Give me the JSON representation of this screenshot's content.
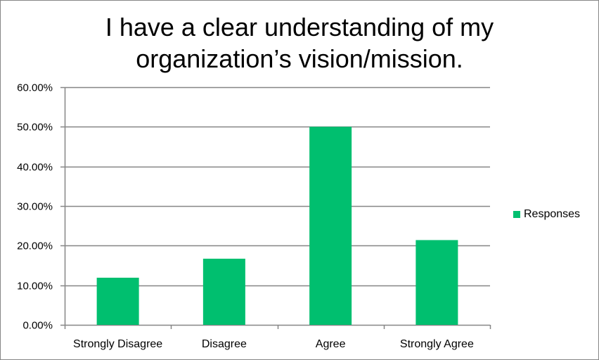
{
  "chart_data": {
    "type": "bar",
    "title_lines": [
      "I have a clear understanding of my",
      "organization’s vision/mission."
    ],
    "categories": [
      "Strongly Disagree",
      "Disagree",
      "Agree",
      "Strongly Agree"
    ],
    "series": [
      {
        "name": "Responses",
        "values": [
          11.9,
          16.7,
          50.0,
          21.4
        ],
        "color": "#00bf6f"
      }
    ],
    "yticks": [
      "0.00%",
      "10.00%",
      "20.00%",
      "30.00%",
      "40.00%",
      "50.00%",
      "60.00%"
    ],
    "ylim": [
      0,
      60
    ],
    "grid": true,
    "legend_position": "right",
    "gridline_color": "#868686"
  }
}
